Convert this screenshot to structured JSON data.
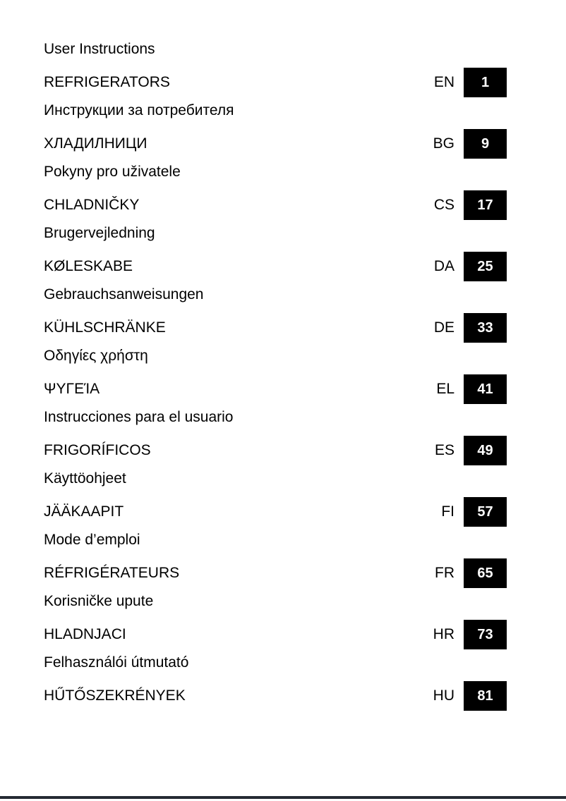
{
  "colors": {
    "page_box_bg": "#000000",
    "page_box_text": "#ffffff",
    "footer_rule": "#252a33"
  },
  "entries": [
    {
      "description": "User Instructions",
      "title": "REFRIGERATORS",
      "code": "EN",
      "page": "1"
    },
    {
      "description": "Инструкции за потребителя",
      "title": "ХЛАДИЛНИЦИ",
      "code": "BG",
      "page": "9"
    },
    {
      "description": "Pokyny pro uživatele",
      "title": "CHLADNIČKY",
      "code": "CS",
      "page": "17"
    },
    {
      "description": "Brugervejledning",
      "title": "KØLESKABE",
      "code": "DA",
      "page": "25"
    },
    {
      "description": "Gebrauchsanweisungen",
      "title": "KÜHLSCHRÄNKE",
      "code": "DE",
      "page": "33"
    },
    {
      "description": "Οδηγίες χρήστη",
      "title": "ΨΥΓΕΊΑ",
      "code": "EL",
      "page": "41"
    },
    {
      "description": "Instrucciones para el usuario",
      "title": "FRIGORÍFICOS",
      "code": "ES",
      "page": "49"
    },
    {
      "description": "Käyttöohjeet",
      "title": "JÄÄKAAPIT",
      "code": "FI",
      "page": "57"
    },
    {
      "description": "Mode d’emploi",
      "title": "RÉFRIGÉRATEURS",
      "code": "FR",
      "page": "65"
    },
    {
      "description": "Korisničke upute",
      "title": "HLADNJACI",
      "code": "HR",
      "page": "73"
    },
    {
      "description": "Felhasználói útmutató",
      "title": "HŰTŐSZEKRÉNYEK",
      "code": "HU",
      "page": "81"
    }
  ]
}
